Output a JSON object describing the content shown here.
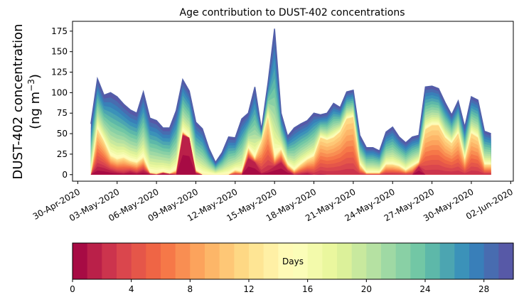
{
  "chart_data": {
    "type": "area",
    "title": "Age contribution to DUST-402 concentrations",
    "ylabel_line1": "DUST-402 concentration",
    "ylabel_line2": "(ng m",
    "ylabel_sup": "−3",
    "ylabel_close": ")",
    "ylim": [
      -8,
      187
    ],
    "yticks": [
      0,
      25,
      50,
      75,
      100,
      125,
      150,
      175
    ],
    "xlim_days": [
      -0.4,
      33.2
    ],
    "xticks": [
      {
        "label": "30-Apr-2020",
        "day": 0
      },
      {
        "label": "03-May-2020",
        "day": 3
      },
      {
        "label": "06-May-2020",
        "day": 6
      },
      {
        "label": "09-May-2020",
        "day": 9
      },
      {
        "label": "12-May-2020",
        "day": 12
      },
      {
        "label": "15-May-2020",
        "day": 15
      },
      {
        "label": "18-May-2020",
        "day": 18
      },
      {
        "label": "21-May-2020",
        "day": 21
      },
      {
        "label": "24-May-2020",
        "day": 24
      },
      {
        "label": "27-May-2020",
        "day": 27
      },
      {
        "label": "30-May-2020",
        "day": 30
      },
      {
        "label": "02-Jun-2020",
        "day": 33
      }
    ],
    "x_days": [
      1,
      1.5,
      2,
      2.5,
      3,
      3.5,
      4,
      4.5,
      5,
      5.5,
      6,
      6.5,
      7,
      7.5,
      8,
      8.5,
      9,
      9.5,
      10,
      10.5,
      11,
      11.5,
      12,
      12.5,
      13,
      13.5,
      14,
      14.5,
      15,
      15.5,
      16,
      16.5,
      17,
      17.5,
      18,
      18.5,
      19,
      19.5,
      20,
      20.5,
      21,
      21.5,
      22,
      22.5,
      23,
      23.5,
      24,
      24.5,
      25,
      25.5,
      26,
      26.5,
      27,
      27.5,
      28,
      28.5,
      29,
      29.5,
      30,
      30.5,
      31,
      31.5
    ],
    "total": [
      62,
      117,
      97,
      100,
      95,
      86,
      79,
      75,
      101,
      69,
      66,
      57,
      57,
      78,
      116,
      102,
      64,
      56,
      32,
      15,
      27,
      46,
      45,
      68,
      75,
      107,
      55,
      112,
      178,
      75,
      47,
      57,
      62,
      66,
      75,
      73,
      75,
      87,
      82,
      101,
      103,
      48,
      33,
      33,
      29,
      52,
      58,
      46,
      39,
      46,
      48,
      107,
      108,
      105,
      88,
      73,
      90,
      58,
      95,
      91,
      53,
      50
    ],
    "young_component": [
      0,
      10,
      8,
      5,
      3,
      2,
      4,
      2,
      5,
      1,
      0,
      2,
      1,
      0,
      48,
      45,
      2,
      0,
      0,
      0,
      0,
      0,
      0,
      0,
      20,
      15,
      2,
      5,
      10,
      15,
      5,
      0,
      1,
      2,
      0,
      1,
      0,
      0,
      0,
      0,
      0,
      0,
      0,
      0,
      0,
      0,
      0,
      0,
      0,
      0,
      10,
      0,
      0,
      0,
      0,
      0,
      0,
      0,
      0,
      0,
      0,
      0
    ],
    "mid_component": [
      0,
      55,
      40,
      22,
      18,
      20,
      16,
      14,
      20,
      2,
      1,
      3,
      1,
      5,
      52,
      45,
      5,
      0,
      0,
      0,
      0,
      0,
      5,
      3,
      32,
      20,
      40,
      70,
      20,
      30,
      12,
      5,
      12,
      18,
      22,
      45,
      42,
      45,
      52,
      68,
      70,
      12,
      2,
      2,
      2,
      12,
      12,
      10,
      5,
      10,
      15,
      55,
      60,
      60,
      45,
      38,
      50,
      18,
      50,
      45,
      12,
      12
    ],
    "colorbar": {
      "label": "Days",
      "range": [
        0,
        30
      ],
      "n_bins": 30,
      "ticks": [
        0,
        4,
        8,
        12,
        16,
        20,
        24,
        28
      ]
    }
  }
}
